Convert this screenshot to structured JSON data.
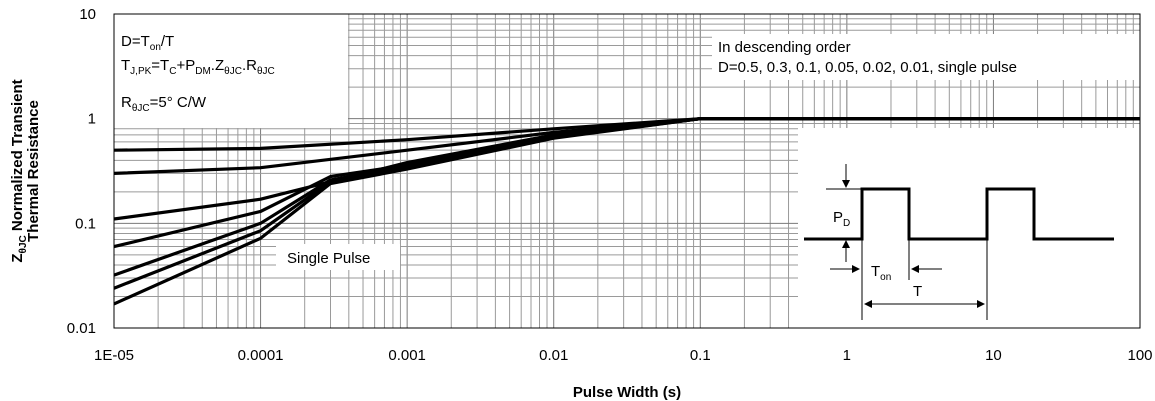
{
  "chart_data": {
    "type": "line",
    "xscale": "log",
    "yscale": "log",
    "xlim": [
      1e-05,
      100
    ],
    "ylim": [
      0.01,
      10
    ],
    "xlabel": "Pulse Width (s)",
    "ylabel": {
      "line1_prefix": "Z",
      "line1_sub": "θJC",
      "line1_rest": " Normalized Transient",
      "line2": "Thermal Resistance"
    },
    "x_ticks": [
      {
        "v": 1e-05,
        "label": "1E-05"
      },
      {
        "v": 0.0001,
        "label": "0.0001"
      },
      {
        "v": 0.001,
        "label": "0.001"
      },
      {
        "v": 0.01,
        "label": "0.01"
      },
      {
        "v": 0.1,
        "label": "0.1"
      },
      {
        "v": 1,
        "label": "1"
      },
      {
        "v": 10,
        "label": "10"
      },
      {
        "v": 100,
        "label": "100"
      }
    ],
    "y_ticks": [
      {
        "v": 10,
        "label": "10"
      },
      {
        "v": 1,
        "label": "1"
      },
      {
        "v": 0.1,
        "label": "0.1"
      },
      {
        "v": 0.01,
        "label": "0.01"
      }
    ],
    "grid": true,
    "series": [
      {
        "x": [
          1e-05,
          0.0001,
          0.001,
          0.01,
          0.1,
          1,
          100
        ],
        "y": [
          0.5,
          0.52,
          0.63,
          0.8,
          1.0,
          1.0,
          1.0
        ]
      },
      {
        "x": [
          1e-05,
          0.0001,
          0.001,
          0.01,
          0.1,
          1,
          100
        ],
        "y": [
          0.3,
          0.34,
          0.5,
          0.74,
          1.0,
          1.0,
          1.0
        ]
      },
      {
        "x": [
          1e-05,
          0.0001,
          0.001,
          0.01,
          0.1,
          1,
          100
        ],
        "y": [
          0.11,
          0.17,
          0.38,
          0.7,
          1.0,
          1.0,
          1.0
        ]
      },
      {
        "x": [
          1e-05,
          0.0001,
          0.0003,
          0.001,
          0.01,
          0.1,
          1,
          100
        ],
        "y": [
          0.06,
          0.13,
          0.28,
          0.36,
          0.68,
          1.0,
          1.0,
          1.0
        ]
      },
      {
        "x": [
          1e-05,
          0.0001,
          0.0003,
          0.001,
          0.01,
          0.1,
          1,
          100
        ],
        "y": [
          0.032,
          0.1,
          0.26,
          0.35,
          0.67,
          1.0,
          1.0,
          1.0
        ]
      },
      {
        "x": [
          1e-05,
          0.0001,
          0.0003,
          0.001,
          0.01,
          0.1,
          1,
          100
        ],
        "y": [
          0.024,
          0.085,
          0.25,
          0.34,
          0.66,
          1.0,
          1.0,
          1.0
        ]
      },
      {
        "x": [
          1e-05,
          0.0001,
          0.0003,
          0.001,
          0.01,
          0.1,
          1,
          100
        ],
        "y": [
          0.017,
          0.072,
          0.24,
          0.33,
          0.65,
          1.0,
          1.0,
          1.0
        ]
      }
    ],
    "annotations": {
      "formula_line1_a": "D=T",
      "formula_line1_sub": "on",
      "formula_line1_b": "/T",
      "formula_line2_a": "T",
      "formula_line2_sub1": "J,PK",
      "formula_line2_b": "=T",
      "formula_line2_sub2": "C",
      "formula_line2_c": "+P",
      "formula_line2_sub3": "DM",
      "formula_line2_d": ".Z",
      "formula_line2_sub4": "θJC",
      "formula_line2_e": ".R",
      "formula_line2_sub5": "θJC",
      "rthjc_a": "R",
      "rthjc_sub": "θJC",
      "rthjc_b": "=5° C/W",
      "order_line1": "In descending order",
      "order_line2": "D=0.5, 0.3, 0.1, 0.05, 0.02, 0.01, single pulse",
      "single_pulse": "Single Pulse",
      "pd_a": "P",
      "pd_sub": "D",
      "ton_a": "T",
      "ton_sub": "on",
      "t_label": "T"
    }
  }
}
